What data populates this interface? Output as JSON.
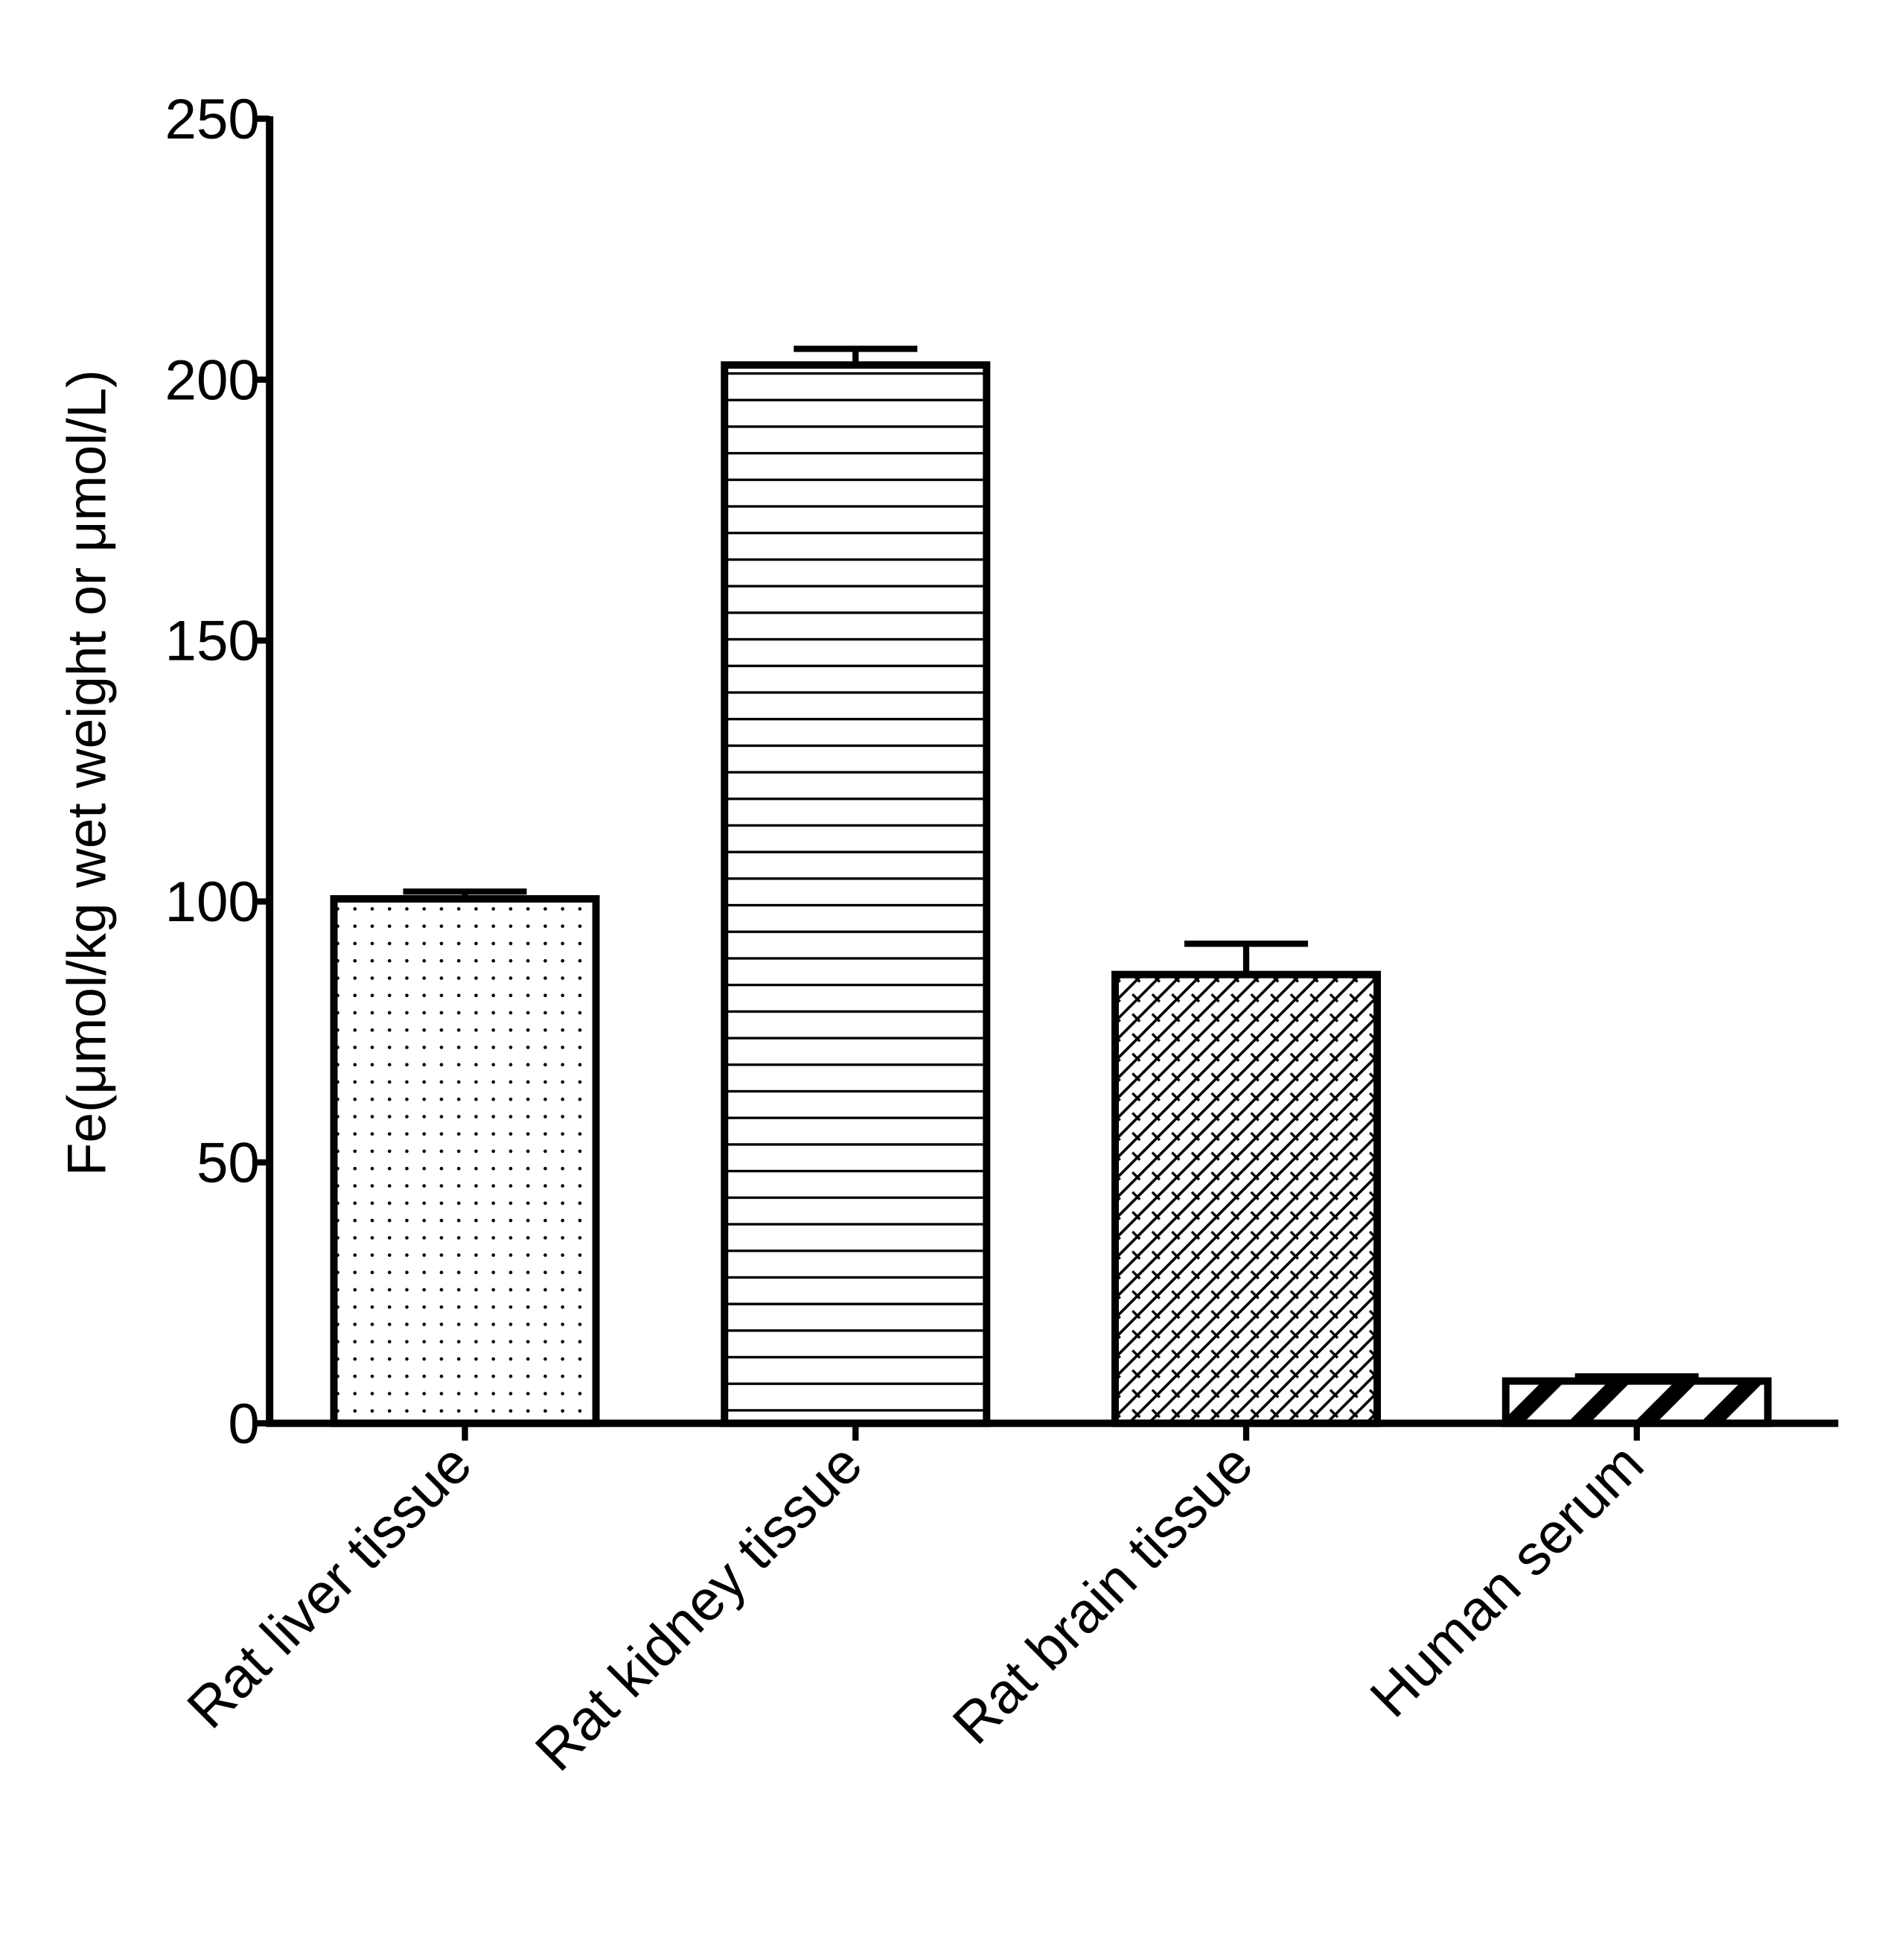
{
  "chart_data": {
    "type": "bar",
    "ylabel": "Fe(μmol/kg wet weight or μmol/L)",
    "categories": [
      "Rat liver tissue",
      "Rat kidney tissue",
      "Rat brain tissue",
      "Human serum"
    ],
    "values": [
      100.5,
      202.8,
      86,
      8.1
    ],
    "errors": [
      1.4,
      3.1,
      5.9,
      0.9
    ],
    "patterns": [
      "dots",
      "horizontal",
      "brick",
      "diagonal"
    ],
    "color": "#000000",
    "ylim": [
      0,
      250
    ],
    "yticks": [
      0,
      50,
      100,
      150,
      200,
      250
    ],
    "grid": false
  }
}
